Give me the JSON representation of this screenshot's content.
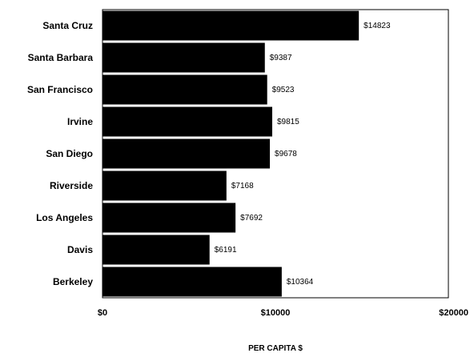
{
  "chart_data": {
    "type": "bar",
    "orientation": "horizontal",
    "categories": [
      "Santa Cruz",
      "Santa Barbara",
      "San Francisco",
      "Irvine",
      "San Diego",
      "Riverside",
      "Los Angeles",
      "Davis",
      "Berkeley"
    ],
    "values": [
      14823,
      9387,
      9523,
      9815,
      9678,
      7168,
      7692,
      6191,
      10364
    ],
    "value_labels": [
      "$14823",
      "$9387",
      "$9523",
      "$9815",
      "$9678",
      "$7168",
      "$7692",
      "$6191",
      "$10364"
    ],
    "xlabel": "PER CAPITA $",
    "ylabel": "",
    "xlim": [
      0,
      20000
    ],
    "x_ticks": [
      0,
      10000,
      20000
    ],
    "x_tick_labels": [
      "$0",
      "$10000",
      "$20000"
    ],
    "grid": false,
    "legend": "none",
    "bar_color": "#000000"
  }
}
